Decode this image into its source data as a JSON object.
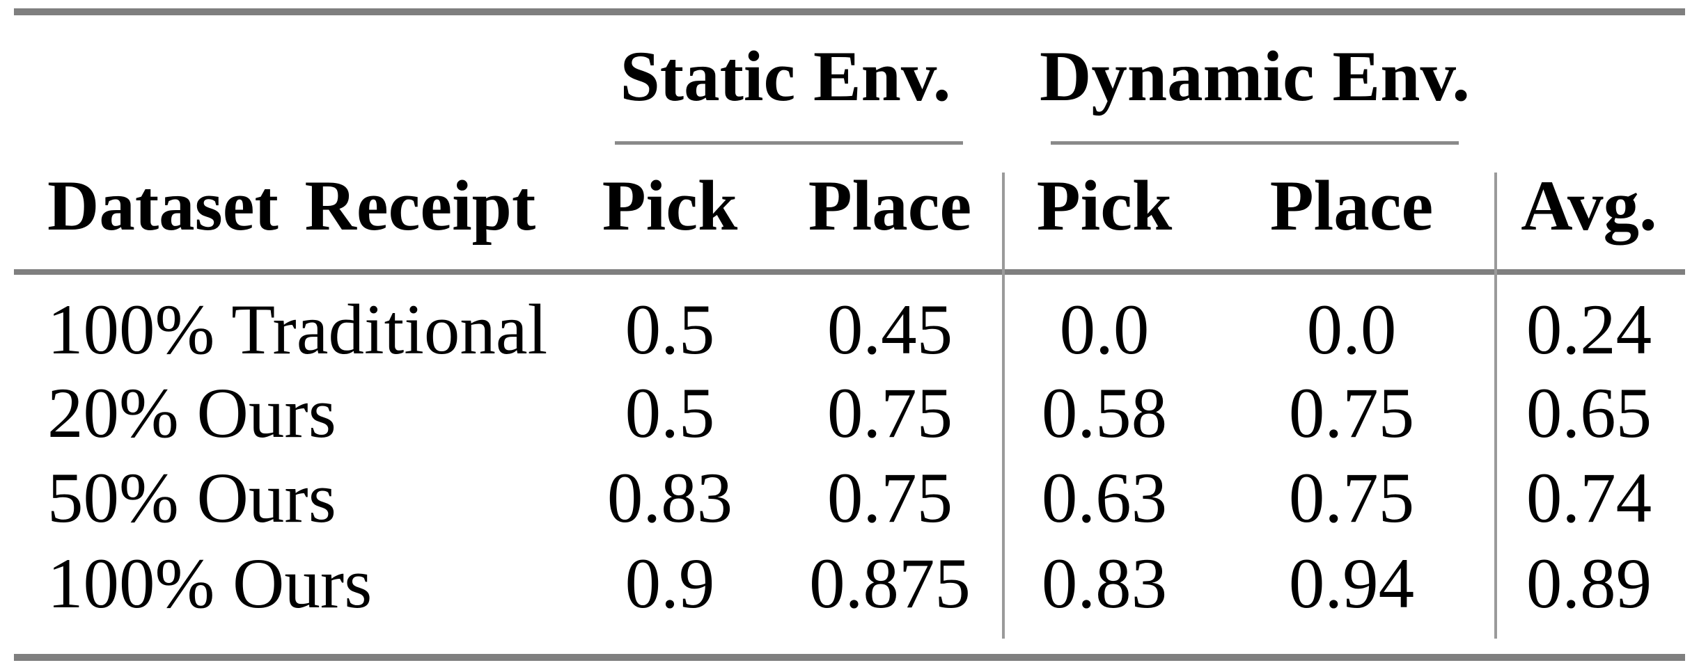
{
  "table": {
    "groups": {
      "static": "Static Env.",
      "dynamic": "Dynamic Env."
    },
    "headers": {
      "stub": "Dataset Receipt",
      "static_pick": "Pick",
      "static_place": "Place",
      "dynamic_pick": "Pick",
      "dynamic_place": "Place",
      "avg": "Avg."
    },
    "rows": [
      {
        "label": "100% Traditional",
        "static_pick": "0.5",
        "static_place": "0.45",
        "dynamic_pick": "0.0",
        "dynamic_place": "0.0",
        "avg": "0.24"
      },
      {
        "label": "20% Ours",
        "static_pick": "0.5",
        "static_place": "0.75",
        "dynamic_pick": "0.58",
        "dynamic_place": "0.75",
        "avg": "0.65"
      },
      {
        "label": "50% Ours",
        "static_pick": "0.83",
        "static_place": "0.75",
        "dynamic_pick": "0.63",
        "dynamic_place": "0.75",
        "avg": "0.74"
      },
      {
        "label": "100% Ours",
        "static_pick": "0.9",
        "static_place": "0.875",
        "dynamic_pick": "0.83",
        "dynamic_place": "0.94",
        "avg": "0.89"
      }
    ],
    "colors": {
      "rule": "#7f7f7f",
      "cmidrule": "#8a8a8a",
      "separator": "#9a9a9a",
      "text": "#000000",
      "background": "#ffffff"
    }
  }
}
